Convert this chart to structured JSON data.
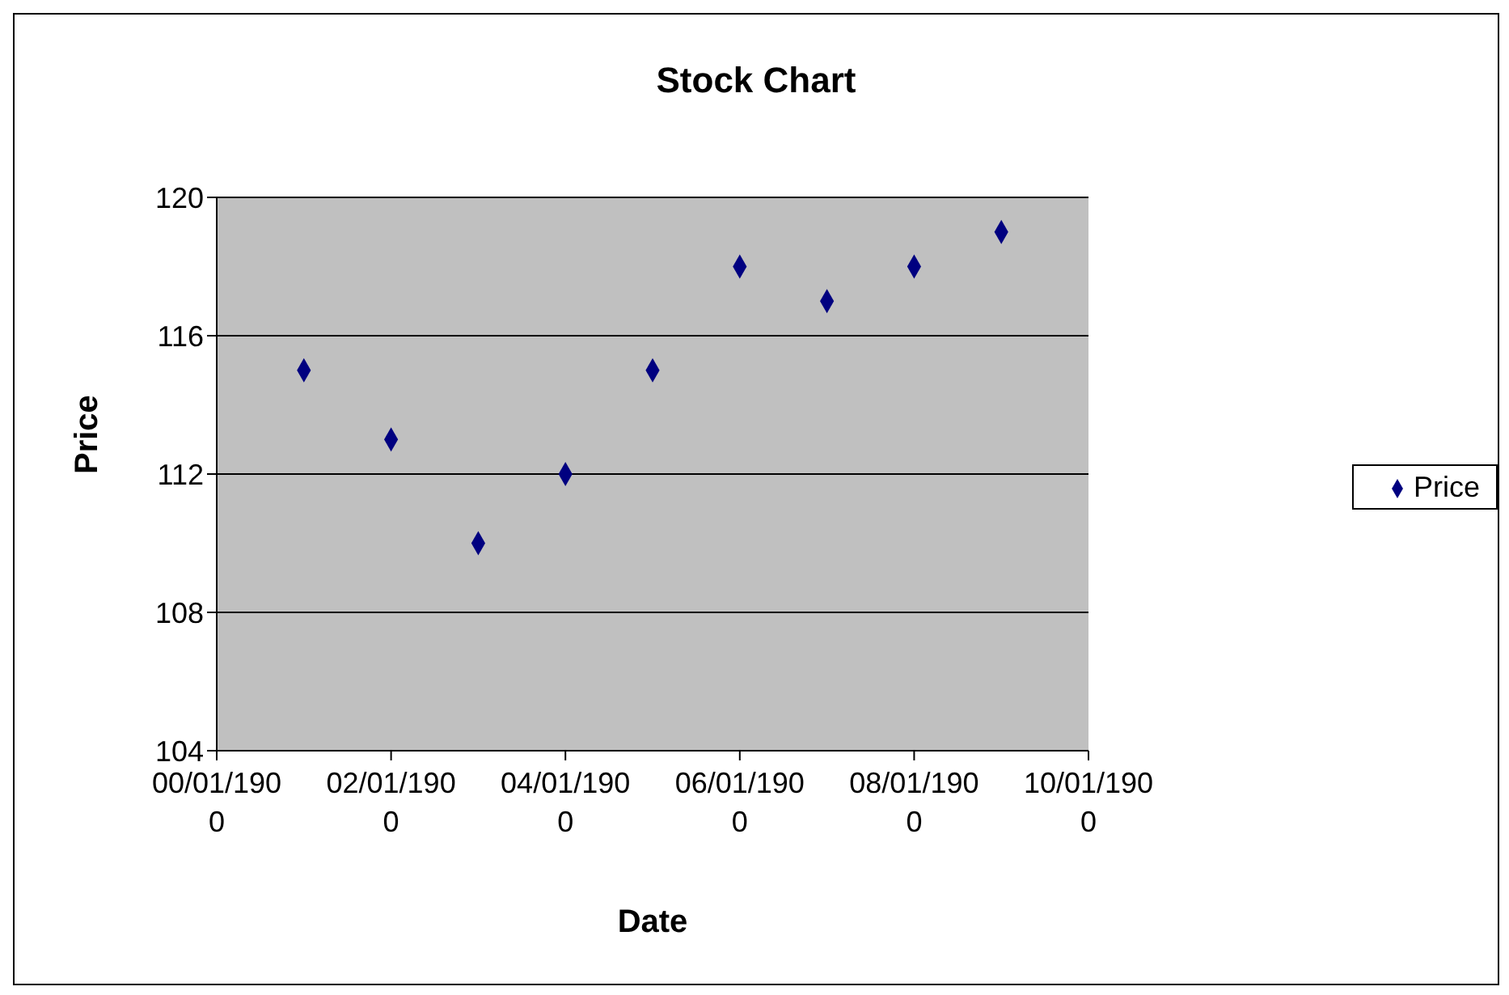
{
  "chart_data": {
    "type": "scatter",
    "title": "Stock Chart",
    "xlabel": "Date",
    "ylabel": "Price",
    "categories": [
      "00/01/1900",
      null,
      "02/01/1900",
      null,
      "04/01/1900",
      null,
      "06/01/1900",
      null,
      "08/01/1900",
      null,
      "10/01/1900"
    ],
    "series": [
      {
        "name": "Price",
        "color": "#000080",
        "values": [
          null,
          115,
          113,
          110,
          112,
          115,
          118,
          117,
          118,
          119,
          null
        ]
      }
    ],
    "ylim": [
      104,
      120
    ],
    "yticks": [
      104,
      108,
      112,
      116,
      120
    ],
    "grid": "y",
    "legend": "right",
    "marker": "diamond"
  }
}
